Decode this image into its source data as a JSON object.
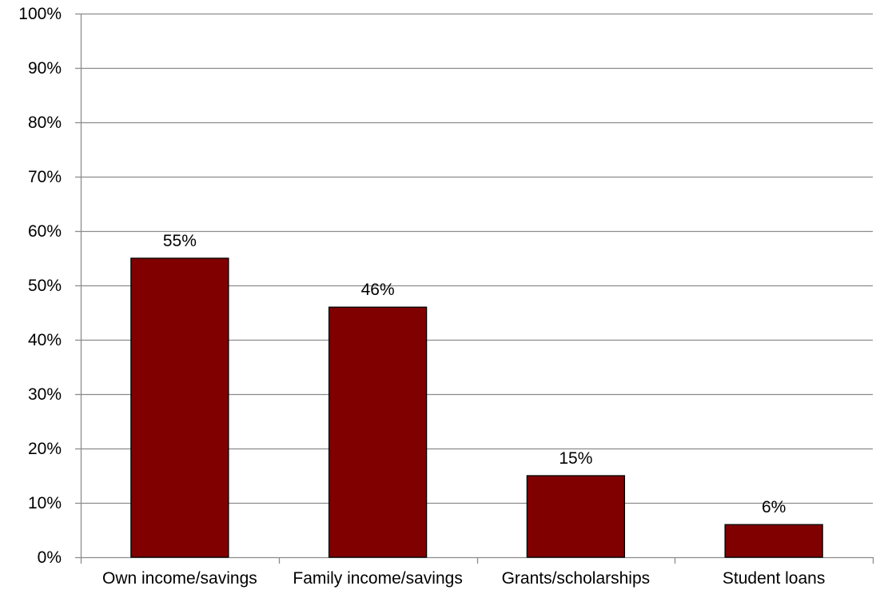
{
  "chart_data": {
    "type": "bar",
    "title": "",
    "xlabel": "",
    "ylabel": "",
    "categories": [
      "Own income/savings",
      "Family income/savings",
      "Grants/scholarships",
      "Student loans"
    ],
    "values": [
      55,
      46,
      15,
      6
    ],
    "data_labels": [
      "55%",
      "46%",
      "15%",
      "6%"
    ],
    "ylim": [
      0,
      100
    ],
    "y_ticks": [
      0,
      10,
      20,
      30,
      40,
      50,
      60,
      70,
      80,
      90,
      100
    ],
    "y_tick_labels": [
      "0%",
      "10%",
      "20%",
      "30%",
      "40%",
      "50%",
      "60%",
      "70%",
      "80%",
      "90%",
      "100%"
    ],
    "grid": true,
    "legend": "none",
    "colors": {
      "bar_fill": "#800000",
      "bar_stroke": "#000000",
      "grid": "#8c8c8c",
      "axis": "#8c8c8c"
    }
  }
}
